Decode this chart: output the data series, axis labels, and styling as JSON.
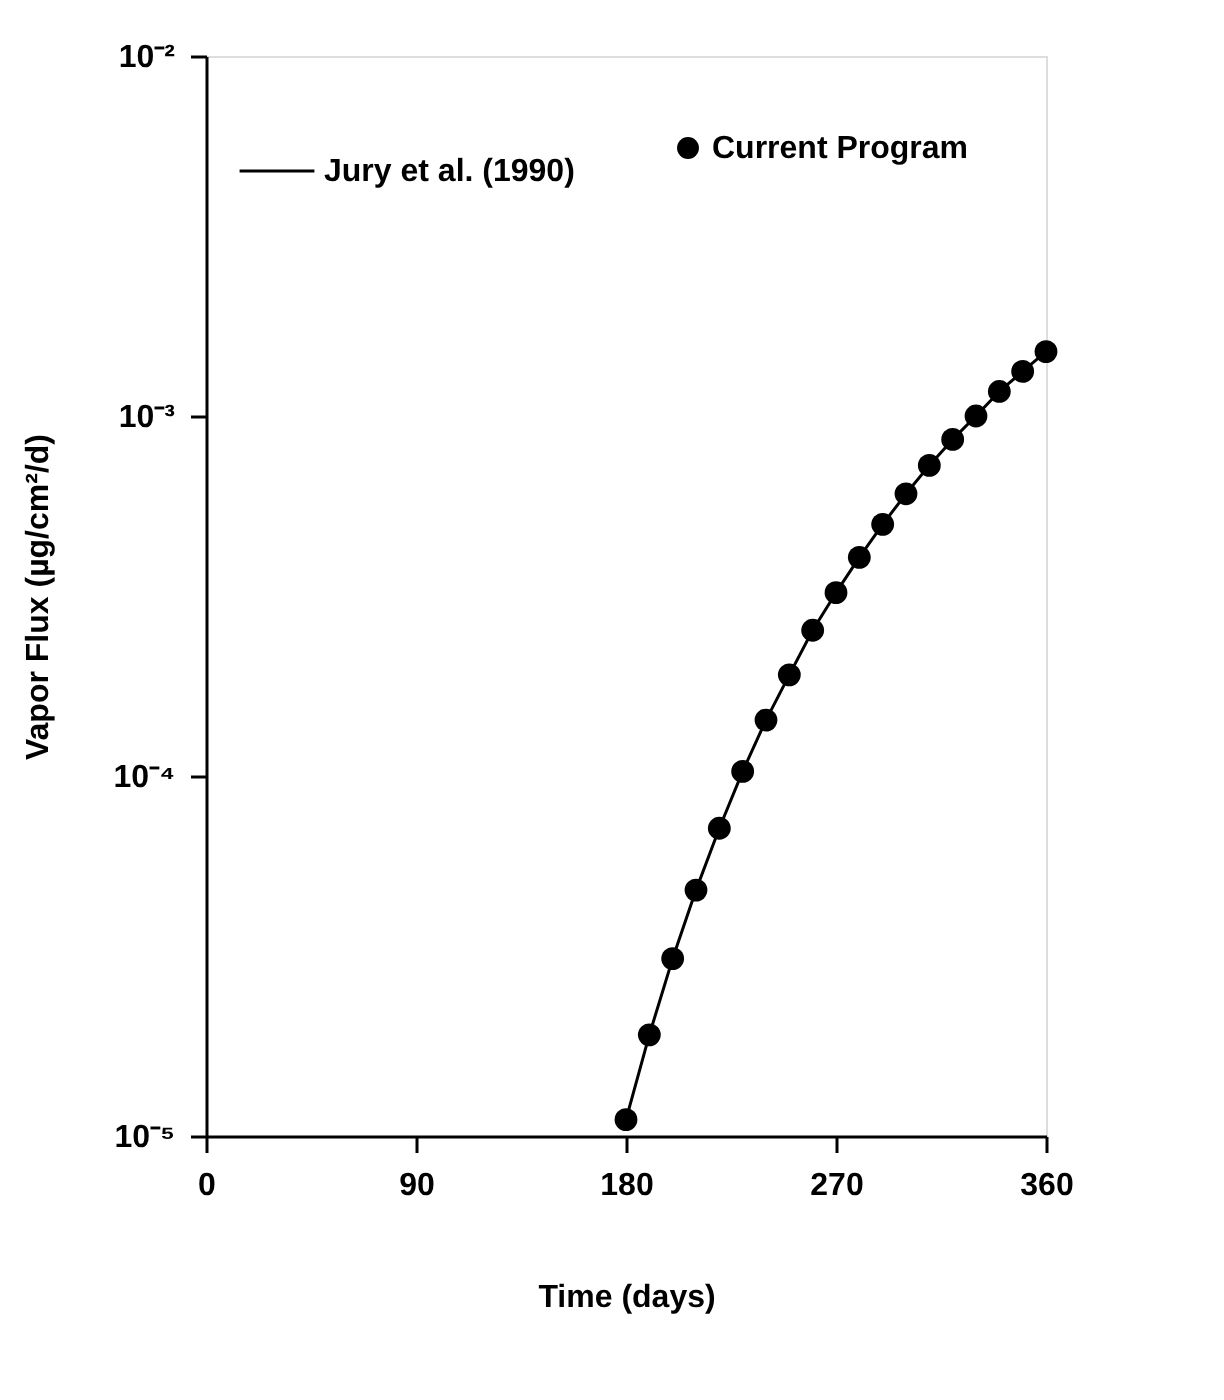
{
  "chart_data": {
    "type": "line",
    "xlabel": "Time (days)",
    "ylabel": "Vapor Flux (µg/cm²/d)",
    "x": [
      180,
      190,
      200,
      210,
      220,
      230,
      240,
      250,
      260,
      270,
      280,
      290,
      300,
      310,
      320,
      330,
      340,
      350,
      360
    ],
    "series": [
      {
        "name": "Jury et al. (1990)",
        "color": "#000000",
        "marker": "none",
        "line_style": "solid",
        "values": [
          1.11e-05,
          1.91e-05,
          3.11e-05,
          4.82e-05,
          7.16e-05,
          0.000103,
          0.000143,
          0.000191,
          0.000254,
          0.000323,
          0.000405,
          0.0005,
          0.000608,
          0.000729,
          0.000861,
          0.001,
          0.00117,
          0.00133,
          0.00151
        ]
      },
      {
        "name": "Current Program",
        "type": "scatter",
        "color": "#000000",
        "marker": "circle",
        "values": [
          1.11e-05,
          1.91e-05,
          3.11e-05,
          4.82e-05,
          7.16e-05,
          0.000103,
          0.000143,
          0.000191,
          0.000254,
          0.000323,
          0.000405,
          0.0005,
          0.000608,
          0.000729,
          0.000861,
          0.001,
          0.00117,
          0.00133,
          0.00151
        ]
      }
    ],
    "xlim": [
      0,
      360
    ],
    "xticks": [
      0,
      90,
      180,
      270,
      360
    ],
    "ylim": [
      1e-05,
      0.01
    ],
    "yticks": [
      {
        "value": 1e-05,
        "label": "10⁻⁵"
      },
      {
        "value": 0.0001,
        "label": "10⁻⁴"
      },
      {
        "value": 0.001,
        "label": "10⁻³"
      },
      {
        "value": 0.01,
        "label": "10⁻²"
      }
    ],
    "log": "y",
    "grid": false,
    "legend": "top right"
  }
}
